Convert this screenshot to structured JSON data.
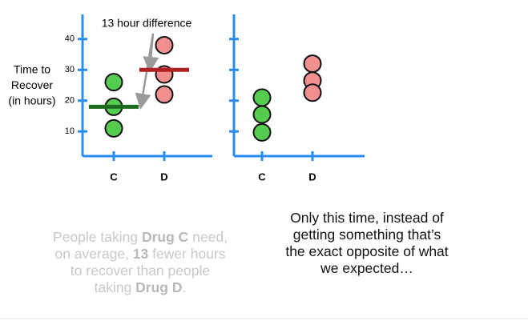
{
  "chart_data": [
    {
      "type": "strip",
      "y_label": [
        "Time to",
        "Recover",
        "(in hours)"
      ],
      "categories": [
        "C",
        "D"
      ],
      "colors": [
        "#55cc4f",
        "#f29090"
      ],
      "values": [
        [
          26,
          18,
          11
        ],
        [
          38,
          28.5,
          22
        ]
      ],
      "means": [
        18,
        30
      ],
      "mean_colors": [
        "#1c6b1f",
        "#b02020"
      ],
      "annotation": "13 hour difference",
      "ylim": [
        2,
        48
      ],
      "yticks": [
        10,
        20,
        30,
        40
      ],
      "tick_labels": true,
      "axis_color": "#2a8cf0"
    },
    {
      "type": "strip",
      "categories": [
        "C",
        "D"
      ],
      "colors": [
        "#55cc4f",
        "#f29090"
      ],
      "values": [
        [
          21,
          15.5,
          9.7
        ],
        [
          32,
          26.5,
          22.6
        ]
      ],
      "ylim": [
        2,
        48
      ],
      "yticks": [
        10,
        20,
        30,
        40
      ],
      "tick_labels": false,
      "axis_color": "#2a8cf0"
    }
  ],
  "caption_left": {
    "lines": [
      [
        "People taking ",
        "Drug C",
        " need,"
      ],
      [
        "on average, ",
        "13",
        " fewer hours"
      ],
      [
        "to recover than people"
      ],
      [
        "taking ",
        "Drug D",
        "."
      ]
    ]
  },
  "caption_right": {
    "lines": [
      "Only this time, instead of",
      "getting something that’s",
      "the exact opposite of what",
      "we expected…"
    ]
  }
}
